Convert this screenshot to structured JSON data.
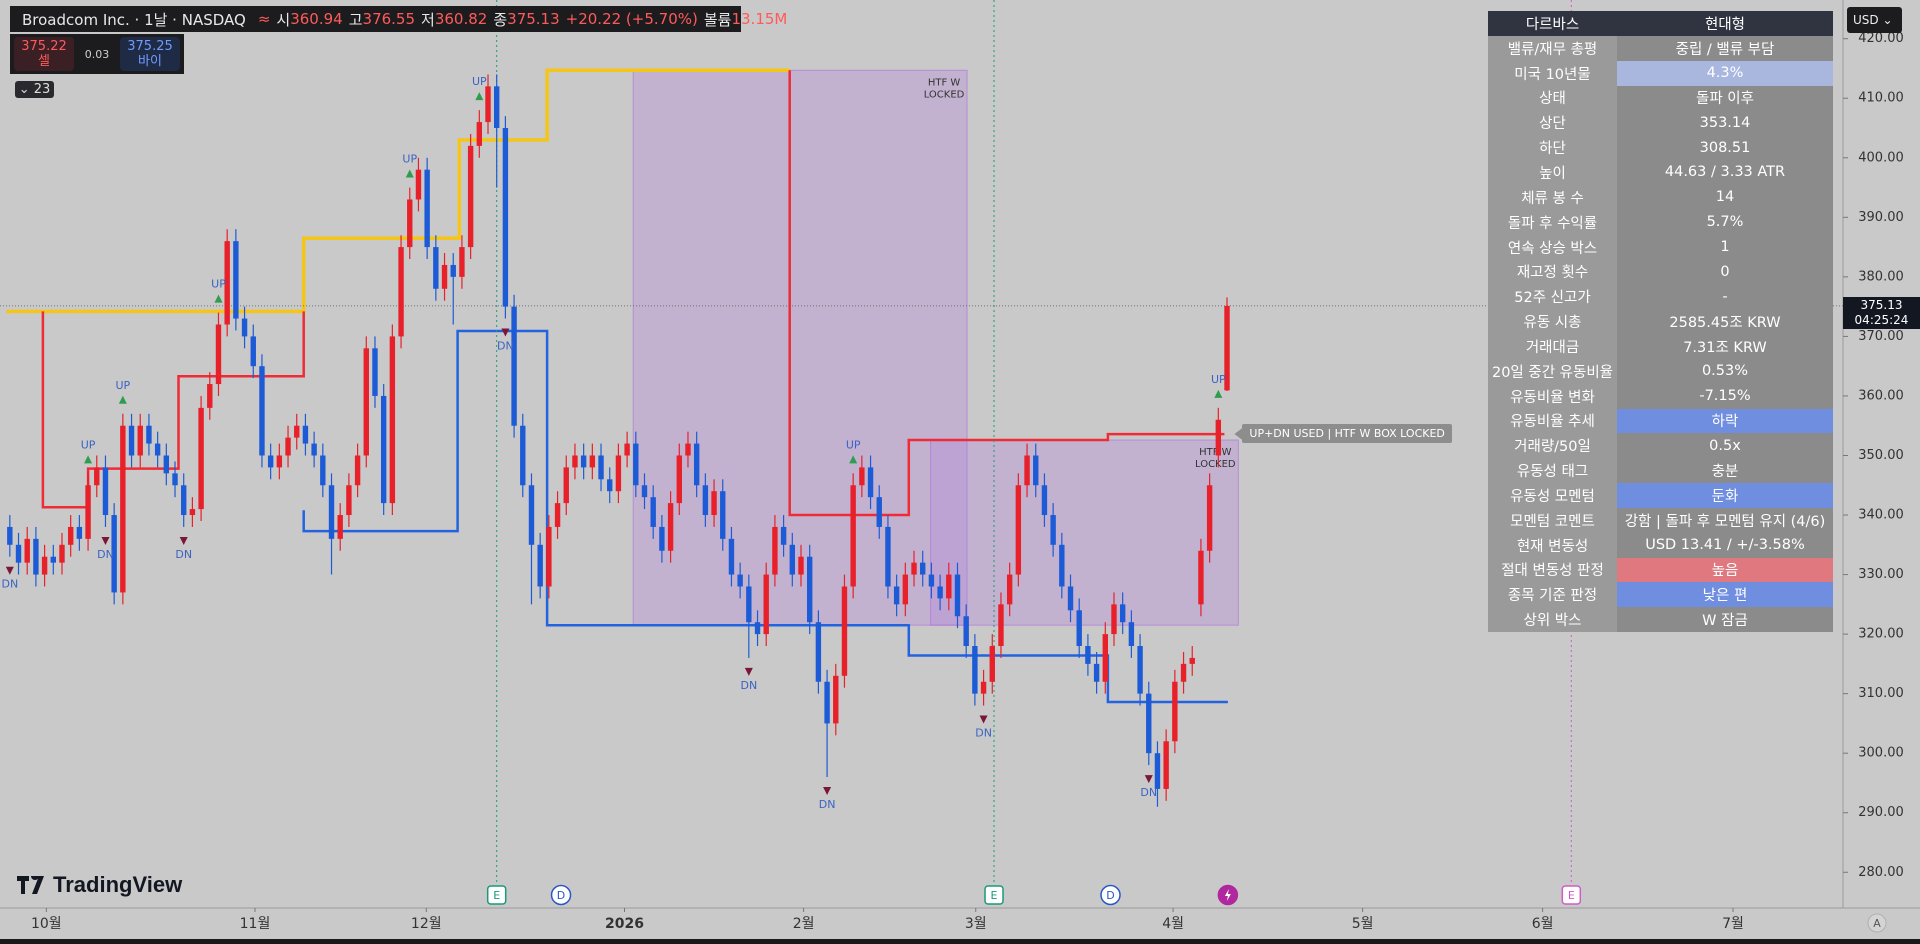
{
  "header": {
    "title": "Broadcom Inc. · 1날 · NASDAQ",
    "symbol_mark": "≈",
    "ohlc_labels": [
      "시",
      "고",
      "저",
      "종"
    ],
    "change": "+20.22 (+5.70%)",
    "volume_label": "볼륨",
    "volume": "13.15M",
    "bid": "375.22",
    "bid_label": "셀",
    "spread": "0.03",
    "ask": "375.25",
    "ask_label": "바이",
    "indicators": "23",
    "currency": "USD",
    "logo": "TradingView",
    "countdown": "04:25:24",
    "axis_button": "A"
  },
  "table": {
    "header": [
      "다르바스",
      "현대형"
    ],
    "rows": [
      {
        "label": "밸류/재무 총평",
        "value": "중립 / 밸류 부담"
      },
      {
        "label": "미국 10년물",
        "value": "4.3%",
        "color": "#a9b7df"
      },
      {
        "label": "상태",
        "value": "돌파 이후"
      },
      {
        "label": "상단",
        "value": "353.14"
      },
      {
        "label": "하단",
        "value": "308.51"
      },
      {
        "label": "높이",
        "value": "44.63 / 3.33 ATR"
      },
      {
        "label": "체류 봉 수",
        "value": "14"
      },
      {
        "label": "돌파 후 수익률",
        "value": "5.7%"
      },
      {
        "label": "연속 상승 박스",
        "value": "1"
      },
      {
        "label": "재고정 횟수",
        "value": "0"
      },
      {
        "label": "52주 신고가",
        "value": "-"
      },
      {
        "label": "유동 시총",
        "value": "2585.45조 KRW"
      },
      {
        "label": "거래대금",
        "value": "7.31조 KRW"
      },
      {
        "label": "20일 중간 유동비율",
        "value": "0.53%"
      },
      {
        "label": "유동비율 변화",
        "value": "-7.15%"
      },
      {
        "label": "유동비율 추세",
        "value": "하락",
        "color": "#6f8ee0"
      },
      {
        "label": "거래량/50일",
        "value": "0.5x"
      },
      {
        "label": "유동성 태그",
        "value": "충분"
      },
      {
        "label": "유동성 모멘텀",
        "value": "둔화",
        "color": "#6f8ee0"
      },
      {
        "label": "모멘텀 코멘트",
        "value": "강함 | 돌파 후 모멘텀 유지 (4/6)"
      },
      {
        "label": "현재 변동성",
        "value": "USD 13.41 / +/-3.58%"
      },
      {
        "label": "절대 변동성 판정",
        "value": "높음",
        "color": "#e07880"
      },
      {
        "label": "종목 기준 판정",
        "value": "낮은 편",
        "color": "#6f8ee0"
      },
      {
        "label": "상위 박스",
        "value": "W 잠금"
      }
    ]
  },
  "chart_data": {
    "type": "candlestick",
    "up_color": "#e8202a",
    "down_color": "#1d5bd6",
    "grid": false,
    "xlim": [
      -1.13,
      210.85
    ],
    "ylim": [
      274,
      426.5
    ],
    "yticks": [
      {
        "value": 280,
        "label": "280.00"
      },
      {
        "value": 290,
        "label": "290.00"
      },
      {
        "value": 300,
        "label": "300.00"
      },
      {
        "value": 310,
        "label": "310.00"
      },
      {
        "value": 320,
        "label": "320.00"
      },
      {
        "value": 330,
        "label": "330.00"
      },
      {
        "value": 340,
        "label": "340.00"
      },
      {
        "value": 350,
        "label": "350.00"
      },
      {
        "value": 360,
        "label": "360.00"
      },
      {
        "value": 370,
        "label": "370.00"
      },
      {
        "value": 380,
        "label": "380.00"
      },
      {
        "value": 390,
        "label": "390.00"
      },
      {
        "value": 400,
        "label": "400.00"
      },
      {
        "value": 410,
        "label": "410.00"
      },
      {
        "value": 420,
        "label": "420.00"
      }
    ],
    "xticks": [
      {
        "value": 4.2,
        "label": "10월"
      },
      {
        "value": 28.2,
        "label": "11월"
      },
      {
        "value": 47.9,
        "label": "12월"
      },
      {
        "value": 70.7,
        "label": "2026"
      },
      {
        "value": 91.3,
        "label": "2월"
      },
      {
        "value": 111.1,
        "label": "3월"
      },
      {
        "value": 133.8,
        "label": "4월"
      },
      {
        "value": 155.6,
        "label": "5월"
      },
      {
        "value": 176.3,
        "label": "6월"
      },
      {
        "value": 198.2,
        "label": "7월"
      }
    ],
    "candles": [
      [
        338,
        340,
        333,
        335
      ],
      [
        335,
        337,
        330,
        332
      ],
      [
        332,
        338,
        330,
        336
      ],
      [
        336,
        338,
        328,
        330
      ],
      [
        330,
        335,
        328,
        333
      ],
      [
        333,
        335,
        330,
        332
      ],
      [
        332,
        337,
        330,
        335
      ],
      [
        335,
        340,
        333,
        338
      ],
      [
        338,
        340,
        334,
        336
      ],
      [
        336,
        347,
        334,
        345
      ],
      [
        345,
        350,
        343,
        348
      ],
      [
        348,
        350,
        338,
        340
      ],
      [
        340,
        342,
        325,
        327
      ],
      [
        327,
        357,
        325,
        355
      ],
      [
        355,
        357,
        348,
        350
      ],
      [
        350,
        357,
        348,
        355
      ],
      [
        355,
        357,
        350,
        352
      ],
      [
        352,
        354,
        348,
        350
      ],
      [
        350,
        352,
        345,
        347
      ],
      [
        347,
        349,
        343,
        345
      ],
      [
        345,
        347,
        338,
        340
      ],
      [
        340,
        343,
        338,
        341
      ],
      [
        341,
        360,
        339,
        358
      ],
      [
        358,
        364,
        356,
        362
      ],
      [
        362,
        374,
        360,
        372
      ],
      [
        372,
        388,
        370,
        386
      ],
      [
        386,
        388,
        371,
        373
      ],
      [
        373,
        375,
        368,
        370
      ],
      [
        370,
        372,
        363,
        365
      ],
      [
        365,
        367,
        348,
        350
      ],
      [
        350,
        352,
        346,
        348
      ],
      [
        348,
        352,
        346,
        350
      ],
      [
        350,
        355,
        348,
        353
      ],
      [
        353,
        357,
        351,
        355
      ],
      [
        355,
        357,
        350,
        352
      ],
      [
        352,
        354,
        348,
        350
      ],
      [
        350,
        352,
        343,
        345
      ],
      [
        345,
        347,
        330,
        336
      ],
      [
        336,
        342,
        334,
        340
      ],
      [
        340,
        347,
        338,
        345
      ],
      [
        345,
        352,
        343,
        350
      ],
      [
        350,
        370,
        348,
        368
      ],
      [
        368,
        370,
        358,
        360
      ],
      [
        360,
        362,
        340,
        342
      ],
      [
        342,
        372,
        340,
        370
      ],
      [
        370,
        387,
        368,
        385
      ],
      [
        385,
        395,
        383,
        393
      ],
      [
        393,
        400,
        391,
        398
      ],
      [
        398,
        400,
        383,
        385
      ],
      [
        385,
        387,
        376,
        378
      ],
      [
        378,
        384,
        376,
        382
      ],
      [
        382,
        384,
        372,
        380
      ],
      [
        380,
        387,
        378,
        385
      ],
      [
        385,
        404,
        383,
        402
      ],
      [
        402,
        408,
        400,
        406
      ],
      [
        406,
        414,
        404,
        412
      ],
      [
        412,
        414,
        395,
        405
      ],
      [
        405,
        407,
        373,
        375
      ],
      [
        375,
        377,
        353,
        355
      ],
      [
        355,
        357,
        343,
        345
      ],
      [
        345,
        347,
        325,
        335
      ],
      [
        335,
        337,
        326,
        328
      ],
      [
        328,
        340,
        326,
        338
      ],
      [
        338,
        344,
        336,
        342
      ],
      [
        342,
        350,
        340,
        348
      ],
      [
        348,
        352,
        346,
        350
      ],
      [
        350,
        352,
        346,
        348
      ],
      [
        348,
        352,
        346,
        350
      ],
      [
        350,
        352,
        344,
        346
      ],
      [
        346,
        348,
        342,
        344
      ],
      [
        344,
        352,
        342,
        350
      ],
      [
        350,
        354,
        348,
        352
      ],
      [
        352,
        354,
        343,
        345
      ],
      [
        345,
        347,
        341,
        343
      ],
      [
        343,
        345,
        336,
        338
      ],
      [
        338,
        340,
        332,
        334
      ],
      [
        334,
        344,
        332,
        342
      ],
      [
        342,
        352,
        340,
        350
      ],
      [
        350,
        354,
        348,
        352
      ],
      [
        352,
        354,
        343,
        345
      ],
      [
        345,
        347,
        338,
        340
      ],
      [
        340,
        346,
        338,
        344
      ],
      [
        344,
        346,
        334,
        336
      ],
      [
        336,
        338,
        328,
        330
      ],
      [
        330,
        332,
        326,
        328
      ],
      [
        328,
        330,
        316,
        322
      ],
      [
        322,
        324,
        318,
        320
      ],
      [
        320,
        332,
        318,
        330
      ],
      [
        330,
        340,
        328,
        338
      ],
      [
        338,
        340,
        333,
        335
      ],
      [
        335,
        337,
        328,
        330
      ],
      [
        330,
        335,
        328,
        333
      ],
      [
        333,
        335,
        320,
        322
      ],
      [
        322,
        324,
        310,
        312
      ],
      [
        312,
        314,
        296,
        305
      ],
      [
        305,
        315,
        303,
        313
      ],
      [
        313,
        330,
        311,
        328
      ],
      [
        328,
        347,
        326,
        345
      ],
      [
        345,
        350,
        343,
        348
      ],
      [
        348,
        350,
        341,
        343
      ],
      [
        343,
        345,
        336,
        338
      ],
      [
        338,
        340,
        326,
        328
      ],
      [
        328,
        330,
        323,
        325
      ],
      [
        325,
        332,
        323,
        330
      ],
      [
        330,
        334,
        328,
        332
      ],
      [
        332,
        334,
        328,
        330
      ],
      [
        330,
        332,
        326,
        328
      ],
      [
        328,
        330,
        324,
        326
      ],
      [
        326,
        332,
        324,
        330
      ],
      [
        330,
        332,
        321,
        323
      ],
      [
        323,
        325,
        316,
        318
      ],
      [
        318,
        320,
        308,
        310
      ],
      [
        310,
        314,
        308,
        312
      ],
      [
        312,
        320,
        310,
        318
      ],
      [
        318,
        327,
        316,
        325
      ],
      [
        325,
        332,
        323,
        330
      ],
      [
        330,
        347,
        328,
        345
      ],
      [
        345,
        352,
        343,
        350
      ],
      [
        350,
        352,
        343,
        345
      ],
      [
        345,
        347,
        338,
        340
      ],
      [
        340,
        342,
        333,
        335
      ],
      [
        335,
        337,
        326,
        328
      ],
      [
        328,
        330,
        322,
        324
      ],
      [
        324,
        326,
        316,
        318
      ],
      [
        318,
        320,
        313,
        315
      ],
      [
        315,
        317,
        310,
        312
      ],
      [
        312,
        322,
        310,
        320
      ],
      [
        320,
        327,
        318,
        325
      ],
      [
        325,
        327,
        320,
        322
      ],
      [
        322,
        324,
        316,
        318
      ],
      [
        318,
        320,
        308,
        310
      ],
      [
        310,
        312,
        298,
        300
      ],
      [
        300,
        302,
        291,
        294
      ],
      [
        294,
        304,
        292,
        302
      ],
      [
        302,
        314,
        300,
        312
      ],
      [
        312,
        317,
        310,
        315
      ],
      [
        315,
        318,
        313,
        316
      ],
      [
        325,
        336,
        323,
        334
      ],
      [
        334,
        347,
        332,
        345
      ],
      [
        350,
        358,
        348,
        356
      ],
      [
        360.94,
        376.55,
        360.82,
        375.13
      ]
    ],
    "lines": [
      {
        "color": "#f5c518",
        "x": [
          -0.4,
          33.8,
          33.8,
          51.7,
          51.7,
          61.8,
          61.8,
          89.7
        ],
        "values": [
          374.2,
          374.2,
          386.5,
          386.5,
          403,
          403,
          414.7,
          414.7
        ]
      },
      {
        "color": "#ef2b36",
        "x": [
          3.8,
          3.8,
          9.0,
          9.0,
          19.4,
          19.4,
          33.8,
          33.8,
          null,
          89.7,
          89.7,
          103.4,
          103.4,
          126.3,
          126.3,
          139.7
        ],
        "values": [
          374.2,
          341.3,
          341.3,
          347.8,
          347.8,
          363.3,
          363.3,
          374.2,
          null,
          414.7,
          340.0,
          340.0,
          352.6,
          352.6,
          353.6,
          353.6
        ]
      },
      {
        "color": "#2463e0",
        "x": [
          33.8,
          33.8,
          51.5,
          51.5,
          61.8,
          61.8,
          103.4,
          103.4,
          126.3,
          126.3,
          140.1
        ],
        "values": [
          340.8,
          337.3,
          337.3,
          370.9,
          370.9,
          321.5,
          321.5,
          316.4,
          316.4,
          308.6,
          308.6
        ]
      }
    ],
    "boxes": [
      {
        "x": [
          71.7,
          110.1
        ],
        "values": [
          414.7,
          321.5
        ],
        "label": [
          "HTF W",
          "LOCKED"
        ]
      },
      {
        "x": [
          105.9,
          141.3
        ],
        "values": [
          352.6,
          321.5
        ],
        "label": [
          "HTF W",
          "LOCKED"
        ]
      }
    ],
    "signals": [
      {
        "label": "UP",
        "candle": 9
      },
      {
        "label": "UP",
        "candle": 13
      },
      {
        "label": "UP",
        "candle": 24
      },
      {
        "label": "UP",
        "candle": 46
      },
      {
        "label": "UP",
        "candle": 54
      },
      {
        "label": "UP",
        "candle": 97
      },
      {
        "label": "UP",
        "candle": 139
      },
      {
        "label": "DN",
        "candle": 0
      },
      {
        "label": "DN",
        "candle": 11
      },
      {
        "label": "DN",
        "candle": 20
      },
      {
        "label": "DN",
        "candle": 57
      },
      {
        "label": "DN",
        "candle": 85
      },
      {
        "label": "DN",
        "candle": 94
      },
      {
        "label": "DN",
        "candle": 112
      },
      {
        "label": "DN",
        "candle": 131
      }
    ],
    "events": [
      {
        "label": "E",
        "x": 56,
        "color": "#1a9a78"
      },
      {
        "label": "D",
        "x": 63.4,
        "color": "#2a56c6"
      },
      {
        "label": "E",
        "x": 113.2,
        "color": "#1a9a78"
      },
      {
        "label": "D",
        "x": 126.6,
        "color": "#2a56c6"
      },
      {
        "icon": "bolt",
        "x": 140.1,
        "color": "#b0279e"
      },
      {
        "label": "E",
        "x": 179.6,
        "color": "#d05cc8"
      }
    ],
    "annotation": "UP+DN USED | HTF W BOX LOCKED"
  }
}
